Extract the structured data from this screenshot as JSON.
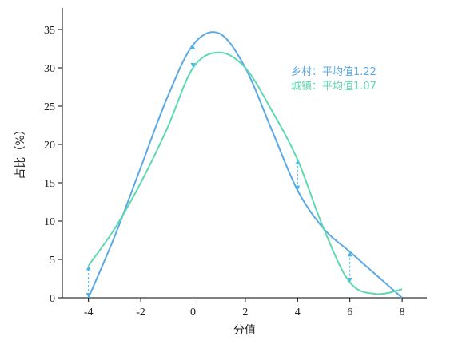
{
  "chart_data": {
    "type": "line",
    "xlabel": "分值",
    "ylabel": "占比（%）",
    "xlim": [
      -5,
      9
    ],
    "ylim": [
      0,
      38
    ],
    "x_ticks": [
      -4,
      -2,
      0,
      2,
      4,
      6,
      8
    ],
    "x_tick_labels": [
      "-4",
      "-2",
      "0",
      "2",
      "4",
      "6",
      "8"
    ],
    "y_ticks": [
      0,
      5,
      10,
      15,
      20,
      25,
      30,
      35
    ],
    "y_tick_labels": [
      "0",
      "5",
      "10",
      "15",
      "20",
      "25",
      "30",
      "35"
    ],
    "grid": false,
    "legend_position": "top-right",
    "series": [
      {
        "name": "乡村",
        "annotation": "乡村：平均值1.22",
        "color": "#5aa9e6",
        "points": [
          [
            -4,
            0
          ],
          [
            -3,
            8
          ],
          [
            -2,
            17
          ],
          [
            -1,
            26
          ],
          [
            0,
            33
          ],
          [
            1,
            34.5
          ],
          [
            2,
            30
          ],
          [
            3,
            22
          ],
          [
            4,
            14
          ],
          [
            5,
            9
          ],
          [
            6,
            6
          ],
          [
            7,
            3
          ],
          [
            8,
            0
          ]
        ]
      },
      {
        "name": "城镇",
        "annotation": "城镇：平均值1.07",
        "color": "#5fd8b0",
        "points": [
          [
            -4,
            4.2
          ],
          [
            -3,
            9
          ],
          [
            -2,
            15
          ],
          [
            -1,
            22
          ],
          [
            0,
            30
          ],
          [
            1,
            32
          ],
          [
            2,
            30
          ],
          [
            3,
            24.5
          ],
          [
            4,
            18
          ],
          [
            5,
            9
          ],
          [
            6,
            2
          ],
          [
            7,
            0.5
          ],
          [
            8,
            1.1
          ]
        ]
      }
    ],
    "difference_markers": [
      {
        "x": -4,
        "from": 0,
        "to": 4.2
      },
      {
        "x": 0,
        "from": 30,
        "to": 33
      },
      {
        "x": 4,
        "from": 14,
        "to": 18
      },
      {
        "x": 6,
        "from": 2,
        "to": 6
      }
    ]
  }
}
